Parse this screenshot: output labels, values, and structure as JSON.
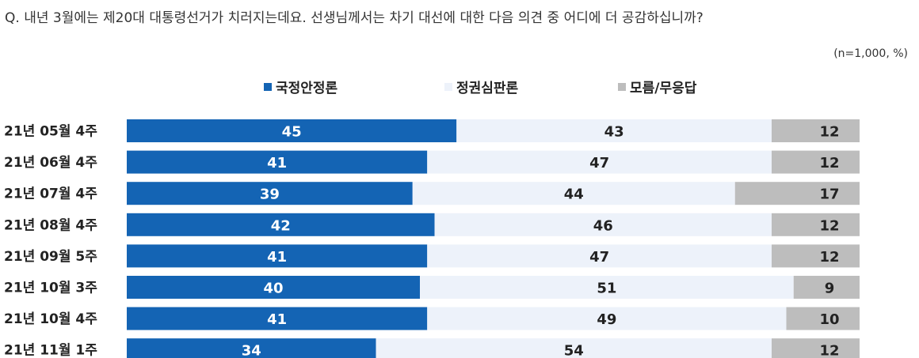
{
  "question": "Q. 내년 3월에는 제20대 대통령선거가 치러지는데요. 선생님께서는 차기 대선에 대한 다음 의견 중 어디에 더 공감하십니까?",
  "sample_note": "(n=1,000,  %)",
  "colors": {
    "stability": "#1464b4",
    "judgment": "#edf2fa",
    "unknown": "#bdbdbd"
  },
  "chart_data": {
    "type": "bar",
    "stacked": true,
    "orientation": "horizontal",
    "categories": [
      "21년 05월 4주",
      "21년 06월 4주",
      "21년 07월 4주",
      "21년 08월 4주",
      "21년 09월 5주",
      "21년 10월 3주",
      "21년 10월 4주",
      "21년 11월 1주"
    ],
    "series": [
      {
        "name": "국정안정론",
        "values": [
          45,
          41,
          39,
          42,
          41,
          40,
          41,
          34
        ]
      },
      {
        "name": "정권심판론",
        "values": [
          43,
          47,
          44,
          46,
          47,
          51,
          49,
          54
        ]
      },
      {
        "name": "모름/무응답",
        "values": [
          12,
          12,
          17,
          12,
          12,
          9,
          10,
          12
        ]
      }
    ],
    "legend_position": "top"
  }
}
